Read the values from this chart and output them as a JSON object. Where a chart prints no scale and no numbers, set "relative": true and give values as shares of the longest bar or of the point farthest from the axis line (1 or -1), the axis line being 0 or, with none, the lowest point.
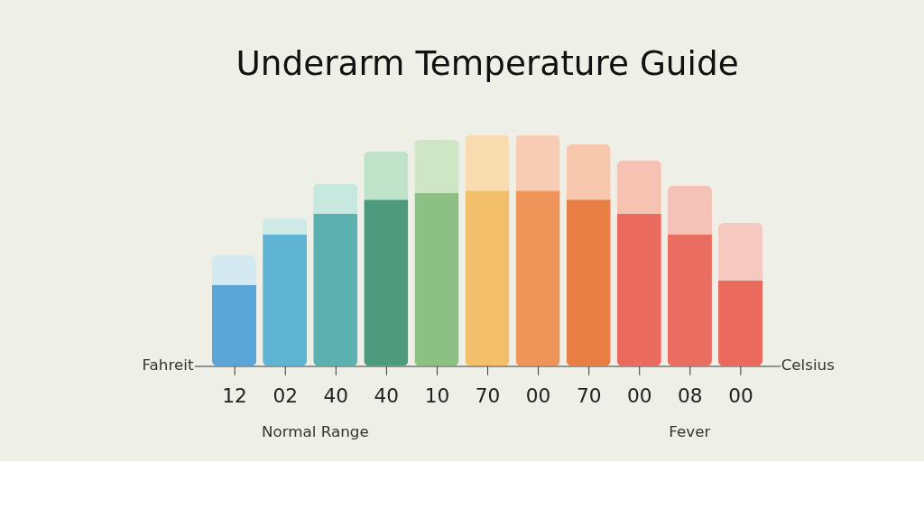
{
  "chart_data": {
    "type": "bar",
    "title": "Underarm Temperature Guide",
    "relative": true,
    "stacked": true,
    "categories": [
      "12",
      "02",
      "40",
      "40",
      "10",
      "70",
      "00",
      "70",
      "00",
      "08",
      "00"
    ],
    "series": [
      {
        "colors": [
          "#5aa5d6",
          "#5fb3d3",
          "#5bb0b0",
          "#4e9a7e",
          "#8cc084",
          "#f2bf6a",
          "#f0955a",
          "#ea7f45",
          "#ea6b5e",
          "#ea6d62",
          "#ea6a5e"
        ],
        "values": [
          0.35,
          0.57,
          0.66,
          0.72,
          0.75,
          0.76,
          0.76,
          0.72,
          0.66,
          0.57,
          0.37
        ]
      },
      {
        "colors": [
          "#d5eaf0",
          "#cfe9e6",
          "#c6e8de",
          "#bfe3c8",
          "#cfe6c4",
          "#f8dcb0",
          "#f8cdb4",
          "#f7c7ae",
          "#f6c3b3",
          "#f5c2b8",
          "#f5c8c0"
        ],
        "values": [
          0.13,
          0.07,
          0.13,
          0.21,
          0.23,
          0.24,
          0.24,
          0.24,
          0.23,
          0.21,
          0.25
        ]
      }
    ],
    "annotations": [
      "Fahreit",
      "Celsius",
      "Normal Range",
      "Fever"
    ]
  }
}
